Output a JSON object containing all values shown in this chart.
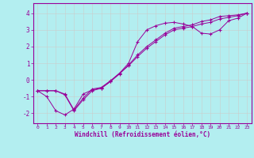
{
  "xlabel": "Windchill (Refroidissement éolien,°C)",
  "background_color": "#b3eef0",
  "line_color": "#990099",
  "grid_color": "#cccccc",
  "xlim": [
    -0.5,
    23.5
  ],
  "ylim": [
    -2.6,
    4.6
  ],
  "yticks": [
    -2,
    -1,
    0,
    1,
    2,
    3,
    4
  ],
  "xticks": [
    0,
    1,
    2,
    3,
    4,
    5,
    6,
    7,
    8,
    9,
    10,
    11,
    12,
    13,
    14,
    15,
    16,
    17,
    18,
    19,
    20,
    21,
    22,
    23
  ],
  "line1_x": [
    0,
    1,
    2,
    3,
    4,
    5,
    6,
    7,
    8,
    9,
    10,
    11,
    12,
    13,
    14,
    15,
    16,
    17,
    18,
    19,
    20,
    21,
    22,
    23
  ],
  "line1_y": [
    -0.65,
    -1.0,
    -1.85,
    -2.1,
    -1.75,
    -0.85,
    -0.6,
    -0.5,
    -0.1,
    0.4,
    1.0,
    2.3,
    3.0,
    3.25,
    3.4,
    3.45,
    3.35,
    3.2,
    2.8,
    2.75,
    3.0,
    3.55,
    3.7,
    4.0
  ],
  "line2_x": [
    0,
    1,
    2,
    3,
    4,
    5,
    6,
    7,
    8,
    9,
    10,
    11,
    12,
    13,
    14,
    15,
    16,
    17,
    18,
    19,
    20,
    21,
    22,
    23
  ],
  "line2_y": [
    -0.65,
    -0.65,
    -0.65,
    -0.9,
    -1.85,
    -1.2,
    -0.65,
    -0.5,
    -0.1,
    0.35,
    0.9,
    1.5,
    2.0,
    2.4,
    2.8,
    3.1,
    3.2,
    3.3,
    3.5,
    3.6,
    3.8,
    3.85,
    3.9,
    4.0
  ],
  "line3_x": [
    0,
    1,
    2,
    3,
    4,
    5,
    6,
    7,
    8,
    9,
    10,
    11,
    12,
    13,
    14,
    15,
    16,
    17,
    18,
    19,
    20,
    21,
    22,
    23
  ],
  "line3_y": [
    -0.65,
    -0.65,
    -0.65,
    -0.85,
    -1.8,
    -1.1,
    -0.55,
    -0.45,
    -0.05,
    0.4,
    0.85,
    1.4,
    1.9,
    2.3,
    2.7,
    3.0,
    3.1,
    3.2,
    3.35,
    3.45,
    3.65,
    3.75,
    3.85,
    4.0
  ]
}
